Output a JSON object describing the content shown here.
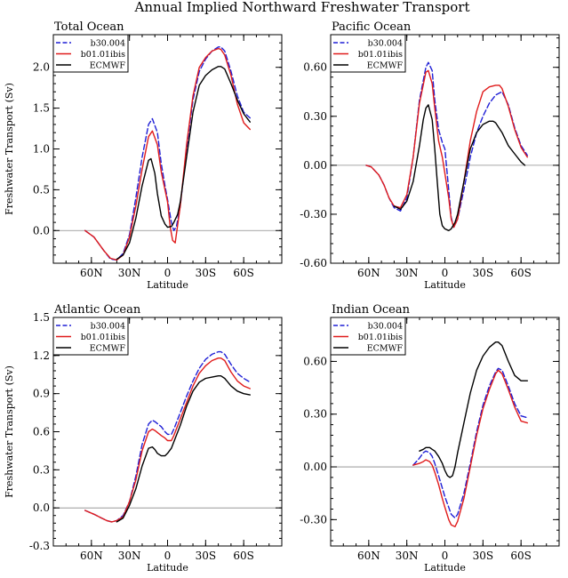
{
  "title": "Annual Implied Northward Freshwater Transport",
  "colors": {
    "b30.004": "#1f1fd6",
    "b01.01ibis": "#e01b1b",
    "ECMWF": "#000000"
  },
  "chart_data": [
    {
      "type": "line",
      "title": "Total Ocean",
      "xlabel": "Latitude",
      "ylabel": "Freshwater Transport (Sv)",
      "xlim": [
        90,
        -90
      ],
      "ylim": [
        -0.4,
        2.4
      ],
      "xticks": [
        {
          "v": 60,
          "label": "60N"
        },
        {
          "v": 30,
          "label": "30N"
        },
        {
          "v": 0,
          "label": "0"
        },
        {
          "v": -30,
          "label": "30S"
        },
        {
          "v": -60,
          "label": "60S"
        }
      ],
      "yticks": [
        {
          "v": 0,
          "label": "0.0"
        },
        {
          "v": 0.5,
          "label": "0.5"
        },
        {
          "v": 1.0,
          "label": "1.0"
        },
        {
          "v": 1.5,
          "label": "1.5"
        },
        {
          "v": 2.0,
          "label": "2.0"
        }
      ],
      "legend": "top-left",
      "series": [
        {
          "name": "b30.004",
          "style": "dashed",
          "x": [
            65,
            58,
            50,
            45,
            40,
            35,
            30,
            25,
            20,
            15,
            12,
            8,
            5,
            2,
            0,
            -3,
            -5,
            -7,
            -10,
            -15,
            -20,
            -25,
            -30,
            -35,
            -40,
            -42,
            -45,
            -50,
            -55,
            -60,
            -65
          ],
          "y": [
            0.0,
            -0.08,
            -0.25,
            -0.35,
            -0.36,
            -0.28,
            -0.05,
            0.4,
            0.9,
            1.3,
            1.37,
            1.2,
            0.82,
            0.55,
            0.38,
            0.1,
            0.0,
            0.05,
            0.3,
            1.0,
            1.6,
            1.95,
            2.1,
            2.2,
            2.25,
            2.25,
            2.2,
            1.95,
            1.65,
            1.45,
            1.38
          ]
        },
        {
          "name": "b01.01ibis",
          "style": "solid",
          "x": [
            65,
            58,
            50,
            45,
            40,
            35,
            30,
            25,
            20,
            15,
            12,
            8,
            5,
            2,
            0,
            -2,
            -4,
            -6,
            -10,
            -15,
            -20,
            -25,
            -30,
            -35,
            -40,
            -42,
            -45,
            -50,
            -55,
            -60,
            -65
          ],
          "y": [
            0.0,
            -0.08,
            -0.25,
            -0.34,
            -0.36,
            -0.3,
            -0.08,
            0.3,
            0.75,
            1.15,
            1.22,
            1.05,
            0.72,
            0.5,
            0.35,
            0.05,
            -0.12,
            -0.15,
            0.3,
            1.05,
            1.65,
            2.0,
            2.12,
            2.2,
            2.23,
            2.22,
            2.15,
            1.9,
            1.55,
            1.32,
            1.24
          ]
        },
        {
          "name": "ECMWF",
          "style": "solid",
          "x": [
            40,
            35,
            30,
            25,
            20,
            15,
            13,
            10,
            8,
            5,
            2,
            0,
            -3,
            -5,
            -8,
            -10,
            -15,
            -20,
            -25,
            -30,
            -35,
            -40,
            -42,
            -45,
            -50,
            -55,
            -60,
            -65
          ],
          "y": [
            -0.35,
            -0.3,
            -0.15,
            0.15,
            0.55,
            0.86,
            0.88,
            0.7,
            0.45,
            0.18,
            0.08,
            0.04,
            0.05,
            0.1,
            0.2,
            0.35,
            0.9,
            1.45,
            1.78,
            1.9,
            1.97,
            2.01,
            2.01,
            1.98,
            1.8,
            1.6,
            1.43,
            1.33
          ]
        }
      ]
    },
    {
      "type": "line",
      "title": "Pacific Ocean",
      "xlabel": "Latitude",
      "ylabel": "",
      "xlim": [
        90,
        -90
      ],
      "ylim": [
        -0.6,
        0.8
      ],
      "xticks": [
        {
          "v": 60,
          "label": "60N"
        },
        {
          "v": 30,
          "label": "30N"
        },
        {
          "v": 0,
          "label": "0"
        },
        {
          "v": -30,
          "label": "30S"
        },
        {
          "v": -60,
          "label": "60S"
        }
      ],
      "yticks": [
        {
          "v": -0.6,
          "label": "-0.60"
        },
        {
          "v": -0.3,
          "label": "-0.30"
        },
        {
          "v": 0,
          "label": "0.00"
        },
        {
          "v": 0.3,
          "label": "0.30"
        },
        {
          "v": 0.6,
          "label": "0.60"
        }
      ],
      "legend": "top-left",
      "series": [
        {
          "name": "b30.004",
          "style": "dashed",
          "x": [
            62,
            58,
            52,
            48,
            44,
            40,
            35,
            30,
            25,
            20,
            15,
            13,
            10,
            8,
            5,
            2,
            0,
            -3,
            -5,
            -7,
            -10,
            -15,
            -20,
            -25,
            -30,
            -35,
            -40,
            -45,
            -50,
            -55,
            -60,
            -65
          ],
          "y": [
            0.0,
            -0.01,
            -0.06,
            -0.12,
            -0.2,
            -0.26,
            -0.28,
            -0.2,
            0.05,
            0.4,
            0.6,
            0.63,
            0.58,
            0.4,
            0.22,
            0.14,
            0.1,
            -0.15,
            -0.32,
            -0.38,
            -0.33,
            -0.15,
            0.05,
            0.2,
            0.3,
            0.38,
            0.43,
            0.45,
            0.37,
            0.23,
            0.12,
            0.06
          ]
        },
        {
          "name": "b01.01ibis",
          "style": "solid",
          "x": [
            62,
            58,
            52,
            48,
            44,
            40,
            35,
            30,
            25,
            20,
            15,
            13,
            10,
            8,
            5,
            2,
            0,
            -3,
            -5,
            -7,
            -10,
            -15,
            -20,
            -25,
            -30,
            -35,
            -40,
            -43,
            -45,
            -50,
            -55,
            -60,
            -65
          ],
          "y": [
            0.0,
            -0.01,
            -0.06,
            -0.12,
            -0.2,
            -0.25,
            -0.26,
            -0.18,
            0.05,
            0.38,
            0.57,
            0.58,
            0.5,
            0.35,
            0.15,
            0.05,
            -0.05,
            -0.2,
            -0.33,
            -0.38,
            -0.33,
            -0.1,
            0.15,
            0.33,
            0.45,
            0.48,
            0.49,
            0.49,
            0.47,
            0.36,
            0.22,
            0.11,
            0.05
          ]
        },
        {
          "name": "ECMWF",
          "style": "solid",
          "x": [
            40,
            35,
            30,
            25,
            20,
            17,
            15,
            13,
            10,
            8,
            6,
            4,
            2,
            0,
            -3,
            -5,
            -8,
            -10,
            -15,
            -20,
            -25,
            -30,
            -35,
            -38,
            -40,
            -45,
            -50,
            -55,
            -60,
            -63
          ],
          "y": [
            -0.25,
            -0.27,
            -0.22,
            -0.1,
            0.12,
            0.28,
            0.35,
            0.37,
            0.28,
            0.1,
            -0.1,
            -0.3,
            -0.37,
            -0.39,
            -0.4,
            -0.39,
            -0.35,
            -0.3,
            -0.1,
            0.1,
            0.2,
            0.25,
            0.27,
            0.27,
            0.26,
            0.2,
            0.12,
            0.07,
            0.02,
            0.0
          ]
        }
      ]
    },
    {
      "type": "line",
      "title": "Atlantic Ocean",
      "xlabel": "Latitude",
      "ylabel": "Freshwater Transport (Sv)",
      "xlim": [
        90,
        -90
      ],
      "ylim": [
        -0.3,
        1.5
      ],
      "xticks": [
        {
          "v": 60,
          "label": "60N"
        },
        {
          "v": 30,
          "label": "30N"
        },
        {
          "v": 0,
          "label": "0"
        },
        {
          "v": -30,
          "label": "30S"
        },
        {
          "v": -60,
          "label": "60S"
        }
      ],
      "yticks": [
        {
          "v": -0.3,
          "label": "-0.3"
        },
        {
          "v": 0,
          "label": "0.0"
        },
        {
          "v": 0.3,
          "label": "0.3"
        },
        {
          "v": 0.6,
          "label": "0.6"
        },
        {
          "v": 0.9,
          "label": "0.9"
        },
        {
          "v": 1.2,
          "label": "1.2"
        },
        {
          "v": 1.5,
          "label": "1.5"
        }
      ],
      "legend": "top-left",
      "series": [
        {
          "name": "b30.004",
          "style": "dashed",
          "x": [
            65,
            58,
            52,
            48,
            44,
            40,
            35,
            30,
            25,
            20,
            15,
            12,
            10,
            5,
            2,
            0,
            -3,
            -5,
            -10,
            -15,
            -20,
            -25,
            -30,
            -35,
            -40,
            -42,
            -45,
            -50,
            -55,
            -60,
            -65
          ],
          "y": [
            -0.02,
            -0.05,
            -0.08,
            -0.1,
            -0.11,
            -0.1,
            -0.06,
            0.05,
            0.25,
            0.5,
            0.66,
            0.69,
            0.68,
            0.64,
            0.6,
            0.58,
            0.58,
            0.62,
            0.75,
            0.88,
            1.0,
            1.1,
            1.17,
            1.21,
            1.23,
            1.23,
            1.21,
            1.13,
            1.06,
            1.02,
            0.99
          ]
        },
        {
          "name": "b01.01ibis",
          "style": "solid",
          "x": [
            65,
            58,
            52,
            48,
            44,
            40,
            35,
            30,
            25,
            20,
            15,
            12,
            10,
            5,
            2,
            0,
            -3,
            -5,
            -10,
            -15,
            -20,
            -25,
            -30,
            -35,
            -40,
            -42,
            -45,
            -50,
            -55,
            -60,
            -65
          ],
          "y": [
            -0.02,
            -0.05,
            -0.08,
            -0.1,
            -0.11,
            -0.1,
            -0.07,
            0.05,
            0.22,
            0.45,
            0.6,
            0.62,
            0.61,
            0.57,
            0.55,
            0.53,
            0.53,
            0.57,
            0.7,
            0.83,
            0.96,
            1.06,
            1.12,
            1.16,
            1.18,
            1.18,
            1.16,
            1.07,
            1.0,
            0.96,
            0.94
          ]
        },
        {
          "name": "ECMWF",
          "style": "solid",
          "x": [
            40,
            35,
            30,
            25,
            20,
            15,
            12,
            10,
            8,
            5,
            2,
            0,
            -3,
            -5,
            -10,
            -15,
            -20,
            -25,
            -30,
            -35,
            -40,
            -42,
            -45,
            -50,
            -55,
            -60,
            -65
          ],
          "y": [
            -0.11,
            -0.08,
            0.02,
            0.15,
            0.33,
            0.47,
            0.48,
            0.46,
            0.43,
            0.41,
            0.41,
            0.43,
            0.47,
            0.52,
            0.65,
            0.8,
            0.92,
            0.99,
            1.02,
            1.03,
            1.04,
            1.04,
            1.02,
            0.96,
            0.92,
            0.9,
            0.89
          ]
        }
      ]
    },
    {
      "type": "line",
      "title": "Indian Ocean",
      "xlabel": "Latitude",
      "ylabel": "",
      "xlim": [
        90,
        -90
      ],
      "ylim": [
        -0.45,
        0.85
      ],
      "xticks": [
        {
          "v": 60,
          "label": "60N"
        },
        {
          "v": 30,
          "label": "30N"
        },
        {
          "v": 0,
          "label": "0"
        },
        {
          "v": -30,
          "label": "30S"
        },
        {
          "v": -60,
          "label": "60S"
        }
      ],
      "yticks": [
        {
          "v": -0.3,
          "label": "-0.30"
        },
        {
          "v": 0,
          "label": "0.00"
        },
        {
          "v": 0.3,
          "label": "0.30"
        },
        {
          "v": 0.6,
          "label": "0.60"
        }
      ],
      "legend": "top-left",
      "series": [
        {
          "name": "b30.004",
          "style": "dashed",
          "x": [
            25,
            20,
            17,
            15,
            12,
            10,
            8,
            5,
            2,
            0,
            -3,
            -5,
            -8,
            -10,
            -15,
            -20,
            -25,
            -30,
            -35,
            -40,
            -42,
            -45,
            -50,
            -55,
            -60,
            -65
          ],
          "y": [
            0.01,
            0.05,
            0.08,
            0.09,
            0.08,
            0.06,
            0.02,
            -0.05,
            -0.12,
            -0.17,
            -0.23,
            -0.27,
            -0.29,
            -0.27,
            -0.15,
            0.02,
            0.2,
            0.35,
            0.46,
            0.54,
            0.56,
            0.55,
            0.46,
            0.36,
            0.29,
            0.28
          ]
        },
        {
          "name": "b01.01ibis",
          "style": "solid",
          "x": [
            25,
            20,
            17,
            15,
            12,
            10,
            8,
            5,
            2,
            0,
            -3,
            -5,
            -8,
            -10,
            -15,
            -20,
            -25,
            -30,
            -35,
            -40,
            -42,
            -45,
            -50,
            -55,
            -60,
            -65
          ],
          "y": [
            0.01,
            0.02,
            0.03,
            0.04,
            0.03,
            0.01,
            -0.03,
            -0.1,
            -0.18,
            -0.23,
            -0.3,
            -0.33,
            -0.34,
            -0.31,
            -0.18,
            0.0,
            0.18,
            0.33,
            0.44,
            0.53,
            0.55,
            0.53,
            0.44,
            0.34,
            0.26,
            0.25
          ]
        },
        {
          "name": "ECMWF",
          "style": "solid",
          "x": [
            20,
            17,
            15,
            12,
            10,
            8,
            5,
            2,
            0,
            -2,
            -4,
            -6,
            -8,
            -10,
            -15,
            -20,
            -25,
            -30,
            -35,
            -40,
            -42,
            -45,
            -50,
            -55,
            -60,
            -65
          ],
          "y": [
            0.09,
            0.1,
            0.11,
            0.11,
            0.1,
            0.09,
            0.06,
            0.02,
            -0.02,
            -0.05,
            -0.06,
            -0.05,
            0.0,
            0.08,
            0.25,
            0.42,
            0.55,
            0.63,
            0.68,
            0.71,
            0.71,
            0.69,
            0.6,
            0.52,
            0.49,
            0.49
          ]
        }
      ]
    }
  ]
}
